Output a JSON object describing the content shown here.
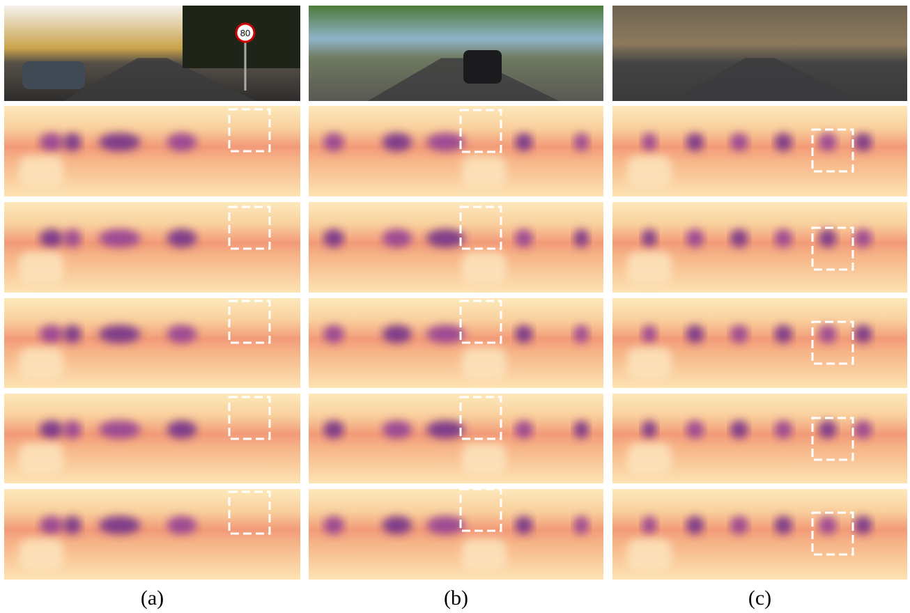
{
  "panels": [
    {
      "caption": "(a)",
      "sign": "80"
    },
    {
      "caption": "(b)"
    },
    {
      "caption": "(c)"
    }
  ]
}
